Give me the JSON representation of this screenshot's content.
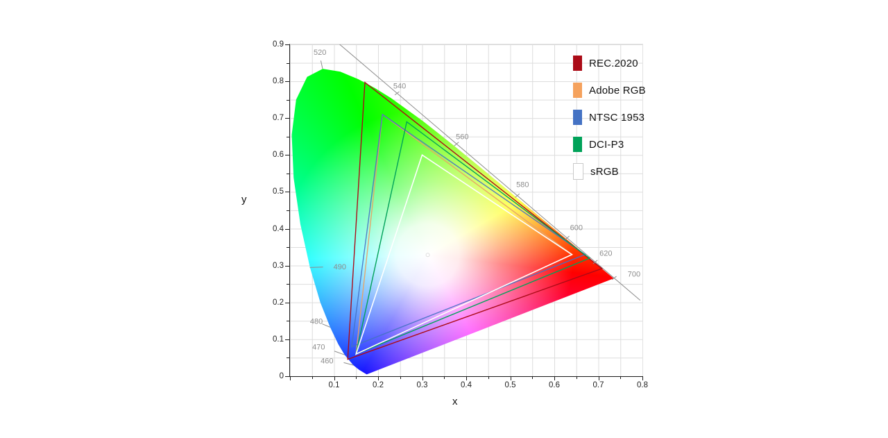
{
  "axes": {
    "x_label": "x",
    "y_label": "y",
    "x_range": [
      0,
      0.8
    ],
    "y_range": [
      0,
      0.9
    ],
    "tick_step": 0.05,
    "label_step": 0.1,
    "x_tick_labels": [
      "0.1",
      "0.2",
      "0.3",
      "0.4",
      "0.5",
      "0.6",
      "0.7",
      "0.8"
    ],
    "y_tick_labels": [
      "0",
      "0.1",
      "0.2",
      "0.3",
      "0.4",
      "0.5",
      "0.6",
      "0.7",
      "0.8",
      "0.9"
    ]
  },
  "legend": {
    "items": [
      {
        "label": "REC.2020",
        "color": "#AB0B17",
        "border": ""
      },
      {
        "label": "Adobe RGB",
        "color": "#F5A25D",
        "border": ""
      },
      {
        "label": "NTSC 1953",
        "color": "#4472C4",
        "border": ""
      },
      {
        "label": "DCI-P3",
        "color": "#00A259",
        "border": ""
      },
      {
        "label": "sRGB",
        "color": "#FFFFFF",
        "border": "#c9c9c9"
      }
    ]
  },
  "chart_data": {
    "type": "area",
    "description": "CIE 1931 xy chromaticity diagram (spectral locus horseshoe) comparing color gamut triangles",
    "xlabel": "x",
    "ylabel": "y",
    "xlim": [
      0,
      0.8
    ],
    "ylim": [
      0,
      0.9
    ],
    "grid": "on",
    "legend_position": "top-right",
    "white_point": [
      0.3127,
      0.329
    ],
    "locus": [
      {
        "nm": 380,
        "x": 0.1741,
        "y": 0.005
      },
      {
        "nm": 450,
        "x": 0.1566,
        "y": 0.0177
      },
      {
        "nm": 460,
        "x": 0.144,
        "y": 0.0297
      },
      {
        "nm": 470,
        "x": 0.1241,
        "y": 0.0578
      },
      {
        "nm": 475,
        "x": 0.1096,
        "y": 0.0868
      },
      {
        "nm": 480,
        "x": 0.0913,
        "y": 0.1327
      },
      {
        "nm": 485,
        "x": 0.0687,
        "y": 0.2007
      },
      {
        "nm": 490,
        "x": 0.0454,
        "y": 0.295
      },
      {
        "nm": 495,
        "x": 0.0235,
        "y": 0.4127
      },
      {
        "nm": 500,
        "x": 0.0082,
        "y": 0.5384
      },
      {
        "nm": 505,
        "x": 0.0039,
        "y": 0.6548
      },
      {
        "nm": 510,
        "x": 0.0139,
        "y": 0.7502
      },
      {
        "nm": 515,
        "x": 0.0389,
        "y": 0.812
      },
      {
        "nm": 520,
        "x": 0.0743,
        "y": 0.8338
      },
      {
        "nm": 525,
        "x": 0.1142,
        "y": 0.8262
      },
      {
        "nm": 530,
        "x": 0.1547,
        "y": 0.8059
      },
      {
        "nm": 535,
        "x": 0.1929,
        "y": 0.7816
      },
      {
        "nm": 540,
        "x": 0.2296,
        "y": 0.7543
      },
      {
        "nm": 550,
        "x": 0.3016,
        "y": 0.6923
      },
      {
        "nm": 560,
        "x": 0.3731,
        "y": 0.6245
      },
      {
        "nm": 570,
        "x": 0.4441,
        "y": 0.5547
      },
      {
        "nm": 580,
        "x": 0.5125,
        "y": 0.4866
      },
      {
        "nm": 590,
        "x": 0.5752,
        "y": 0.4242
      },
      {
        "nm": 600,
        "x": 0.627,
        "y": 0.3725
      },
      {
        "nm": 610,
        "x": 0.6658,
        "y": 0.334
      },
      {
        "nm": 620,
        "x": 0.6915,
        "y": 0.3083
      },
      {
        "nm": 635,
        "x": 0.714,
        "y": 0.2859
      },
      {
        "nm": 700,
        "x": 0.7347,
        "y": 0.2653
      }
    ],
    "gamuts": [
      {
        "name": "REC.2020",
        "color": "#AB0B17",
        "width": 1.4,
        "opacity": 1,
        "red": [
          0.708,
          0.292
        ],
        "green": [
          0.17,
          0.797
        ],
        "blue": [
          0.131,
          0.046
        ]
      },
      {
        "name": "Adobe RGB",
        "color": "#E8A366",
        "width": 1.4,
        "opacity": 0.95,
        "red": [
          0.64,
          0.33
        ],
        "green": [
          0.21,
          0.71
        ],
        "blue": [
          0.15,
          0.06
        ]
      },
      {
        "name": "NTSC 1953",
        "color": "#4472C4",
        "width": 1.4,
        "opacity": 0.9,
        "red": [
          0.67,
          0.33
        ],
        "green": [
          0.21,
          0.71
        ],
        "blue": [
          0.14,
          0.08
        ]
      },
      {
        "name": "DCI-P3",
        "color": "#00A259",
        "width": 1.4,
        "opacity": 1,
        "red": [
          0.68,
          0.32
        ],
        "green": [
          0.265,
          0.69
        ],
        "blue": [
          0.15,
          0.06
        ]
      },
      {
        "name": "sRGB",
        "color": "#FFFFFF",
        "width": 1.6,
        "opacity": 1,
        "red": [
          0.64,
          0.33
        ],
        "green": [
          0.3,
          0.6
        ],
        "blue": [
          0.15,
          0.06
        ]
      }
    ],
    "reference_line": {
      "from": [
        0.107,
        0.906
      ],
      "to": [
        0.795,
        0.206
      ],
      "color": "#8c8c8c"
    },
    "wavelength_labels": [
      {
        "nm": "460",
        "label": [
          0.084,
          0.041
        ],
        "tick": [
          [
            0.144,
            0.03
          ],
          [
            0.122,
            0.037
          ]
        ]
      },
      {
        "nm": "470",
        "label": [
          0.065,
          0.079
        ],
        "tick": [
          [
            0.124,
            0.058
          ],
          [
            0.101,
            0.068
          ]
        ]
      },
      {
        "nm": "480",
        "label": [
          0.06,
          0.149
        ],
        "tick": [
          [
            0.091,
            0.133
          ],
          [
            0.073,
            0.142
          ]
        ]
      },
      {
        "nm": "490",
        "label": [
          0.113,
          0.297
        ],
        "tick": [
          [
            0.045,
            0.295
          ],
          [
            0.075,
            0.296
          ]
        ]
      },
      {
        "nm": "520",
        "label": [
          0.068,
          0.878
        ],
        "tick": [
          [
            0.074,
            0.834
          ],
          [
            0.07,
            0.856
          ]
        ]
      },
      {
        "nm": "540",
        "label": [
          0.249,
          0.787
        ],
        "tick": [
          [
            0.238,
            0.763
          ],
          [
            0.248,
            0.772
          ]
        ]
      },
      {
        "nm": "560",
        "label": [
          0.391,
          0.65
        ],
        "tick": [
          [
            0.373,
            0.625
          ],
          [
            0.383,
            0.635
          ]
        ]
      },
      {
        "nm": "580",
        "label": [
          0.528,
          0.52
        ],
        "tick": [
          [
            0.511,
            0.485
          ],
          [
            0.521,
            0.495
          ]
        ]
      },
      {
        "nm": "600",
        "label": [
          0.65,
          0.403
        ],
        "tick": [
          [
            0.624,
            0.37
          ],
          [
            0.634,
            0.38
          ]
        ]
      },
      {
        "nm": "620",
        "label": [
          0.717,
          0.333
        ],
        "tick": [
          [
            0.688,
            0.305
          ],
          [
            0.698,
            0.315
          ]
        ]
      },
      {
        "nm": "700",
        "label": [
          0.781,
          0.277
        ],
        "tick": [
          [
            0.731,
            0.262
          ],
          [
            0.741,
            0.271
          ]
        ]
      }
    ]
  }
}
